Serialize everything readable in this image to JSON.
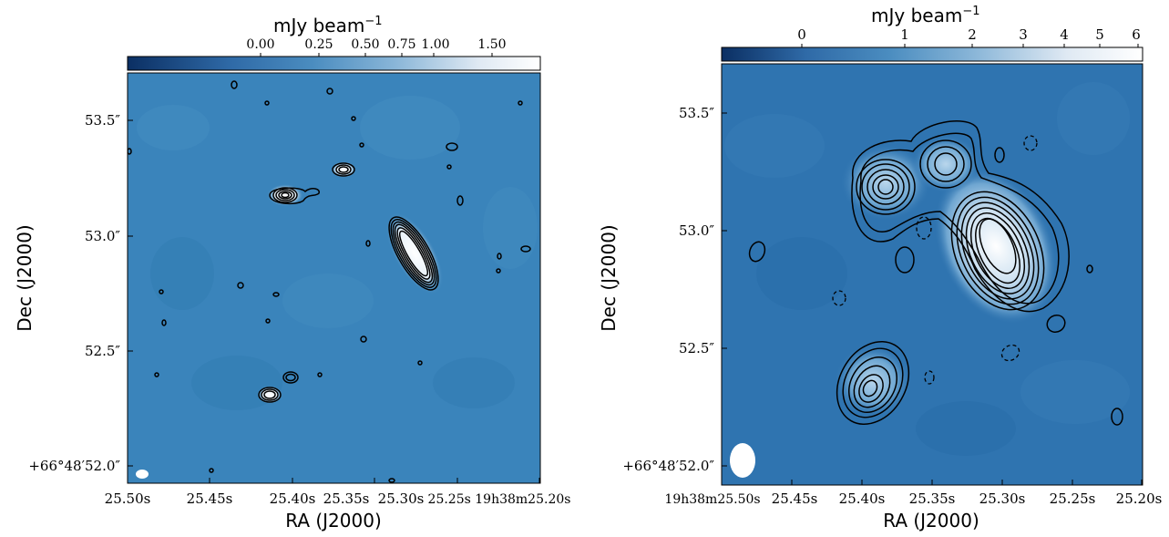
{
  "panels": [
    {
      "colorbar": {
        "label": "mJy beam",
        "label_exp": "−1",
        "ticks": [
          "0.00",
          "0.25",
          "0.50",
          "0.75",
          "1.00",
          "1.50"
        ],
        "colors": [
          "#0b2f63",
          "#2f6aa7",
          "#4b8dc0",
          "#8ab6d8",
          "#dfe9f3",
          "#ffffff"
        ]
      },
      "yaxis": {
        "label": "Dec (J2000)",
        "ticks": [
          "53.5″",
          "53.0″",
          "52.5″",
          "+66°48′52.0″"
        ]
      },
      "xaxis": {
        "label": "RA (J2000)",
        "ticks": [
          "25.50s",
          "25.45s",
          "25.40s",
          "25.35s",
          "25.30s",
          "25.25s 19h38m25.20s"
        ]
      },
      "background": "#3a84bb"
    },
    {
      "colorbar": {
        "label": "mJy beam",
        "label_exp": "−1",
        "ticks": [
          "0",
          "1",
          "2",
          "3",
          "4",
          "5",
          "6"
        ],
        "colors": [
          "#0b2f63",
          "#2f6aa7",
          "#4b8dc0",
          "#8ab6d8",
          "#dfe9f3",
          "#ffffff"
        ]
      },
      "yaxis": {
        "label": "Dec (J2000)",
        "ticks": [
          "53.5″",
          "53.0″",
          "52.5″",
          "+66°48′52.0″"
        ]
      },
      "xaxis": {
        "label": "RA (J2000)",
        "ticks": [
          "19h38m25.50s",
          "25.45s",
          "25.40s",
          "25.35s",
          "25.30s",
          "25.25s",
          "25.20s"
        ]
      },
      "background": "#2f74b0"
    }
  ]
}
